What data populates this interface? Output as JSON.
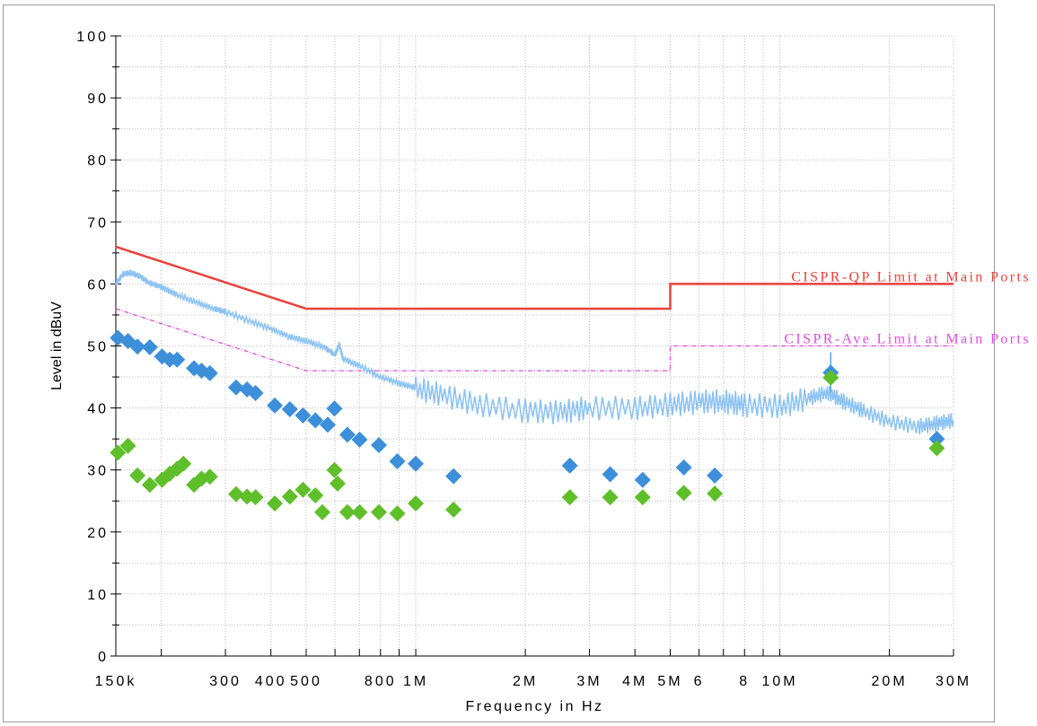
{
  "chart_data": {
    "type": "line",
    "xlabel": "Frequency in Hz",
    "ylabel": "Level in dBuV",
    "x_scale": "log",
    "xlim": [
      "150k",
      "30M"
    ],
    "ylim": [
      0,
      100
    ],
    "grid": true,
    "y_ticks": [
      0,
      10,
      20,
      30,
      40,
      50,
      60,
      70,
      80,
      90,
      100
    ],
    "x_tick_labels": [
      {
        "f": 150000,
        "label": "150k"
      },
      {
        "f": 300000,
        "label": "300"
      },
      {
        "f": 400000,
        "label": "400"
      },
      {
        "f": 500000,
        "label": "500"
      },
      {
        "f": 800000,
        "label": "800"
      },
      {
        "f": 1000000,
        "label": "1M"
      },
      {
        "f": 2000000,
        "label": "2M"
      },
      {
        "f": 3000000,
        "label": "3M"
      },
      {
        "f": 4000000,
        "label": "4M"
      },
      {
        "f": 5000000,
        "label": "5M"
      },
      {
        "f": 6000000,
        "label": "6"
      },
      {
        "f": 8000000,
        "label": "8"
      },
      {
        "f": 10000000,
        "label": "10M"
      },
      {
        "f": 20000000,
        "label": "20M"
      },
      {
        "f": 30000000,
        "label": "30M"
      }
    ],
    "series": [
      {
        "name": "CISPR-QP Limit at Main Ports",
        "kind": "limit",
        "color": "#e8423c",
        "points": [
          [
            150000,
            66
          ],
          [
            500000,
            56
          ],
          [
            5000000,
            56
          ],
          [
            5000000,
            60
          ],
          [
            30000000,
            60
          ]
        ]
      },
      {
        "name": "CISPR-Ave Limit at Main Ports",
        "kind": "limit",
        "color": "#e04ce0",
        "points": [
          [
            150000,
            56
          ],
          [
            500000,
            46
          ],
          [
            5000000,
            46
          ],
          [
            5000000,
            50
          ],
          [
            30000000,
            50
          ]
        ]
      },
      {
        "kind": "spectrum",
        "color": "#8ec3f2",
        "points": [
          [
            150000,
            60
          ],
          [
            157000,
            61.6
          ],
          [
            165000,
            61.8
          ],
          [
            175000,
            61.2
          ],
          [
            185000,
            60.2
          ],
          [
            200000,
            59.5
          ],
          [
            220000,
            58.3
          ],
          [
            250000,
            57
          ],
          [
            280000,
            56
          ],
          [
            300000,
            55.5
          ],
          [
            350000,
            54
          ],
          [
            400000,
            52.8
          ],
          [
            450000,
            51.5
          ],
          [
            500000,
            50.8
          ],
          [
            560000,
            49.8
          ],
          [
            600000,
            48.6
          ],
          [
            617000,
            50.2
          ],
          [
            630000,
            48
          ],
          [
            700000,
            46.8
          ],
          [
            800000,
            45
          ],
          [
            900000,
            44
          ],
          [
            1000000,
            43.2
          ],
          [
            1200000,
            42
          ],
          [
            1500000,
            40.5
          ],
          [
            2000000,
            39.5
          ],
          [
            2500000,
            39.3
          ],
          [
            3000000,
            40
          ],
          [
            4000000,
            40
          ],
          [
            5000000,
            40.5
          ],
          [
            6000000,
            41
          ],
          [
            7000000,
            41
          ],
          [
            8000000,
            40.5
          ],
          [
            10000000,
            40.2
          ],
          [
            12000000,
            41.6
          ],
          [
            13500000,
            42.5
          ],
          [
            15000000,
            41
          ],
          [
            17000000,
            39.5
          ],
          [
            20000000,
            37.8
          ],
          [
            24000000,
            37
          ],
          [
            27000000,
            37.5
          ],
          [
            30000000,
            38
          ]
        ]
      },
      {
        "kind": "peaks",
        "color": "#3d8fd9",
        "points": [
          [
            152000,
            51.3
          ],
          [
            162000,
            50.8
          ],
          [
            172000,
            49.9
          ],
          [
            186000,
            49.8
          ],
          [
            201000,
            48.3
          ],
          [
            211000,
            47.8
          ],
          [
            221000,
            47.8
          ],
          [
            246000,
            46.4
          ],
          [
            258000,
            46
          ],
          [
            272000,
            45.6
          ],
          [
            321000,
            43.3
          ],
          [
            344000,
            43
          ],
          [
            363000,
            42.4
          ],
          [
            410000,
            40.4
          ],
          [
            451000,
            39.8
          ],
          [
            490000,
            38.8
          ],
          [
            530000,
            38
          ],
          [
            573000,
            37.3
          ],
          [
            598000,
            39.9
          ],
          [
            649000,
            35.7
          ],
          [
            701000,
            34.9
          ],
          [
            792000,
            34
          ],
          [
            890000,
            31.4
          ],
          [
            1000000,
            31
          ],
          [
            1270000,
            29
          ],
          [
            2650000,
            30.7
          ],
          [
            3420000,
            29.3
          ],
          [
            4200000,
            28.4
          ],
          [
            5450000,
            30.4
          ],
          [
            6630000,
            29.1
          ],
          [
            13800000,
            45.7
          ],
          [
            27000000,
            35
          ]
        ]
      },
      {
        "kind": "peaks",
        "color": "#5fbf2a",
        "points": [
          [
            152000,
            32.8
          ],
          [
            162000,
            33.9
          ],
          [
            172000,
            29.1
          ],
          [
            186000,
            27.6
          ],
          [
            201000,
            28.4
          ],
          [
            211000,
            29.4
          ],
          [
            221000,
            30.2
          ],
          [
            230000,
            31
          ],
          [
            246000,
            27.6
          ],
          [
            258000,
            28.6
          ],
          [
            272000,
            28.9
          ],
          [
            321000,
            26.1
          ],
          [
            344000,
            25.7
          ],
          [
            363000,
            25.6
          ],
          [
            410000,
            24.6
          ],
          [
            451000,
            25.7
          ],
          [
            490000,
            26.8
          ],
          [
            530000,
            25.9
          ],
          [
            554000,
            23.2
          ],
          [
            598000,
            30
          ],
          [
            610000,
            27.8
          ],
          [
            649000,
            23.2
          ],
          [
            701000,
            23.2
          ],
          [
            792000,
            23.2
          ],
          [
            890000,
            23
          ],
          [
            1000000,
            24.6
          ],
          [
            1270000,
            23.6
          ],
          [
            2650000,
            25.6
          ],
          [
            3420000,
            25.6
          ],
          [
            4200000,
            25.6
          ],
          [
            5450000,
            26.3
          ],
          [
            6630000,
            26.2
          ],
          [
            13800000,
            44.9
          ],
          [
            27000000,
            33.5
          ]
        ]
      }
    ]
  }
}
